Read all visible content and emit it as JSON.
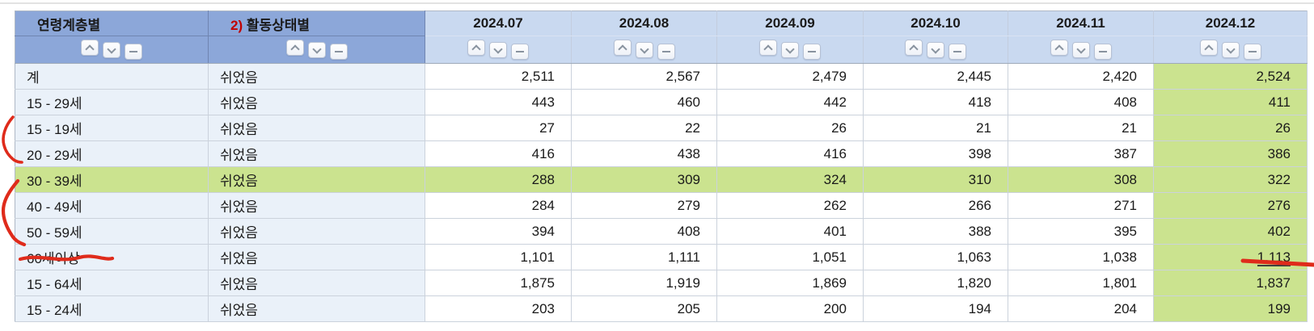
{
  "colors": {
    "header_blue": "#8CA7D9",
    "subheader_blue": "#C9D9F0",
    "label_cell_blue": "#EAF1F9",
    "highlight_green": "#CBE38F",
    "annotation_red": "#DF2B1B",
    "footnote_red": "#C00000",
    "icon_gray": "#89939F",
    "outer_border": "#AEB8C6"
  },
  "table": {
    "header": {
      "age_label": "연령계층별",
      "status_prefix": "2)",
      "status_label": "활동상태별",
      "months": [
        "2024.07",
        "2024.08",
        "2024.09",
        "2024.10",
        "2024.11",
        "2024.12"
      ]
    },
    "sort_icons": [
      {
        "name": "sort-up",
        "glyph": "chevron-up"
      },
      {
        "name": "sort-down",
        "glyph": "chevron-down"
      },
      {
        "name": "collapse",
        "glyph": "minus"
      }
    ],
    "rows": [
      {
        "age": "계",
        "status": "쉬었음",
        "values": [
          "2,511",
          "2,567",
          "2,479",
          "2,445",
          "2,420",
          "2,524"
        ]
      },
      {
        "age": "15 - 29세",
        "status": "쉬었음",
        "values": [
          "443",
          "460",
          "442",
          "418",
          "408",
          "411"
        ]
      },
      {
        "age": "15 - 19세",
        "status": "쉬었음",
        "values": [
          "27",
          "22",
          "26",
          "21",
          "21",
          "26"
        ]
      },
      {
        "age": "20 - 29세",
        "status": "쉬었음",
        "values": [
          "416",
          "438",
          "416",
          "398",
          "387",
          "386"
        ]
      },
      {
        "age": "30 - 39세",
        "status": "쉬었음",
        "highlight": true,
        "values": [
          "288",
          "309",
          "324",
          "310",
          "308",
          "322"
        ]
      },
      {
        "age": "40 - 49세",
        "status": "쉬었음",
        "values": [
          "284",
          "279",
          "262",
          "266",
          "271",
          "276"
        ]
      },
      {
        "age": "50 - 59세",
        "status": "쉬었음",
        "values": [
          "394",
          "408",
          "401",
          "388",
          "395",
          "402"
        ]
      },
      {
        "age": "60세이상",
        "status": "쉬었음",
        "value_underline": true,
        "values": [
          "1,101",
          "1,111",
          "1,051",
          "1,063",
          "1,038",
          "1,113"
        ]
      },
      {
        "age": "15 - 64세",
        "status": "쉬었음",
        "values": [
          "1,875",
          "1,919",
          "1,869",
          "1,820",
          "1,801",
          "1,837"
        ]
      },
      {
        "age": "15 - 24세",
        "status": "쉬었음",
        "values": [
          "203",
          "205",
          "200",
          "194",
          "204",
          "199"
        ]
      }
    ],
    "highlighted_column": "2024.12",
    "highlighted_row": "30 - 39세"
  },
  "annotations": {
    "bracket_small_rows": "15 - 19세 ~ 20 - 29세",
    "bracket_large_rows": "40 - 49세 ~ 50 - 59세",
    "underlined_label": "60세이상",
    "underlined_value": "1,113"
  }
}
